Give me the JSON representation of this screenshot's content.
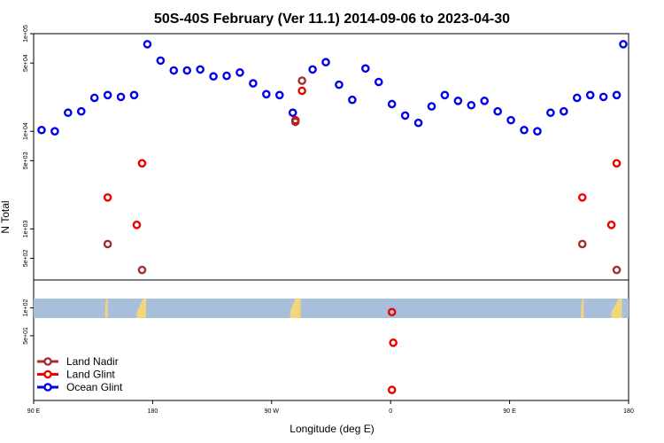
{
  "chart_data": {
    "type": "scatter",
    "title": "50S-40S February (Ver 11.1)   2014-09-06 to 2023-04-30",
    "xlabel": "Longitude (deg E)",
    "ylabel": "N Total",
    "x_ticks": [
      {
        "value": 90,
        "label": "90 E"
      },
      {
        "value": 180,
        "label": "180"
      },
      {
        "value": 270,
        "label": "90 W"
      },
      {
        "value": 360,
        "label": "0"
      },
      {
        "value": 450,
        "label": "90 E"
      },
      {
        "value": 540,
        "label": "180"
      }
    ],
    "xlim": [
      90,
      540
    ],
    "y_scale": "log",
    "upper_panel": {
      "ylim": [
        300,
        100000
      ],
      "y_ticks": [
        {
          "value": 100000,
          "label": "1e+05"
        },
        {
          "value": 50000,
          "label": "5e+04"
        },
        {
          "value": 10000,
          "label": "1e+04"
        },
        {
          "value": 5000,
          "label": "5e+03"
        },
        {
          "value": 1000,
          "label": "1e+03"
        },
        {
          "value": 500,
          "label": "5e+02"
        }
      ]
    },
    "lower_panel": {
      "ylim": [
        10,
        200
      ],
      "y_ticks": [
        {
          "value": 100,
          "label": "1e+02"
        },
        {
          "value": 50,
          "label": "5e+01"
        }
      ],
      "map_strip_range": [
        90,
        150
      ]
    },
    "series": [
      {
        "name": "Ocean Glint",
        "color": "#0000ee",
        "points": [
          [
            96,
            10300
          ],
          [
            106,
            10000
          ],
          [
            116,
            15500
          ],
          [
            126,
            16000
          ],
          [
            136,
            22000
          ],
          [
            146,
            23500
          ],
          [
            156,
            22500
          ],
          [
            166,
            23500
          ],
          [
            176,
            78000
          ],
          [
            186,
            53000
          ],
          [
            196,
            42000
          ],
          [
            206,
            42000
          ],
          [
            216,
            43000
          ],
          [
            226,
            36500
          ],
          [
            236,
            37000
          ],
          [
            246,
            40000
          ],
          [
            256,
            31000
          ],
          [
            266,
            24000
          ],
          [
            276,
            23500
          ],
          [
            286,
            15500
          ],
          [
            301,
            43000
          ],
          [
            311,
            51000
          ],
          [
            321,
            30000
          ],
          [
            331,
            21000
          ],
          [
            341,
            44000
          ],
          [
            351,
            32000
          ],
          [
            361,
            19000
          ],
          [
            371,
            14500
          ],
          [
            381,
            12200
          ],
          [
            391,
            18000
          ],
          [
            401,
            23500
          ],
          [
            411,
            20500
          ],
          [
            421,
            18500
          ],
          [
            431,
            20500
          ],
          [
            441,
            16000
          ],
          [
            451,
            13000
          ],
          [
            461,
            10300
          ],
          [
            471,
            10000
          ],
          [
            481,
            15500
          ],
          [
            491,
            16000
          ],
          [
            501,
            22000
          ],
          [
            511,
            23500
          ],
          [
            521,
            22500
          ],
          [
            531,
            23500
          ],
          [
            541,
            78000
          ]
        ]
      },
      {
        "name": "Land Glint",
        "color": "#ee0000",
        "points": [
          [
            146,
            2100
          ],
          [
            168,
            1100
          ],
          [
            172,
            4700
          ],
          [
            288,
            13000
          ],
          [
            293,
            26000
          ],
          [
            505,
            2100
          ],
          [
            527,
            1100
          ],
          [
            531,
            4700
          ],
          [
            361,
            90
          ],
          [
            362,
            42
          ],
          [
            361,
            13
          ]
        ]
      },
      {
        "name": "Land Nadir",
        "color": "#a03030",
        "points": [
          [
            146,
            700
          ],
          [
            172,
            380
          ],
          [
            288,
            12500
          ],
          [
            293,
            33000
          ],
          [
            505,
            700
          ],
          [
            531,
            380
          ]
        ]
      }
    ],
    "legend": {
      "position": "bottom-left",
      "entries": [
        "Land Nadir",
        "Land Glint",
        "Ocean Glint"
      ]
    },
    "land_segments_in_strip": [
      {
        "from": 144,
        "to": 146,
        "x0_frac": 0.4,
        "x1_frac": 0.6
      },
      {
        "from": 168,
        "to": 175,
        "x0_frac": 0.7,
        "x1_frac": 0.3
      },
      {
        "from": 284,
        "to": 292,
        "x0_frac": 0.5,
        "x1_frac": 0.5
      },
      {
        "from": 504,
        "to": 506,
        "x0_frac": 0.4,
        "x1_frac": 0.6
      },
      {
        "from": 527,
        "to": 535,
        "x0_frac": 0.7,
        "x1_frac": 0.3
      }
    ],
    "colors": {
      "ocean_strip": "#a8bfdc",
      "land_strip": "#f2d77a"
    }
  }
}
